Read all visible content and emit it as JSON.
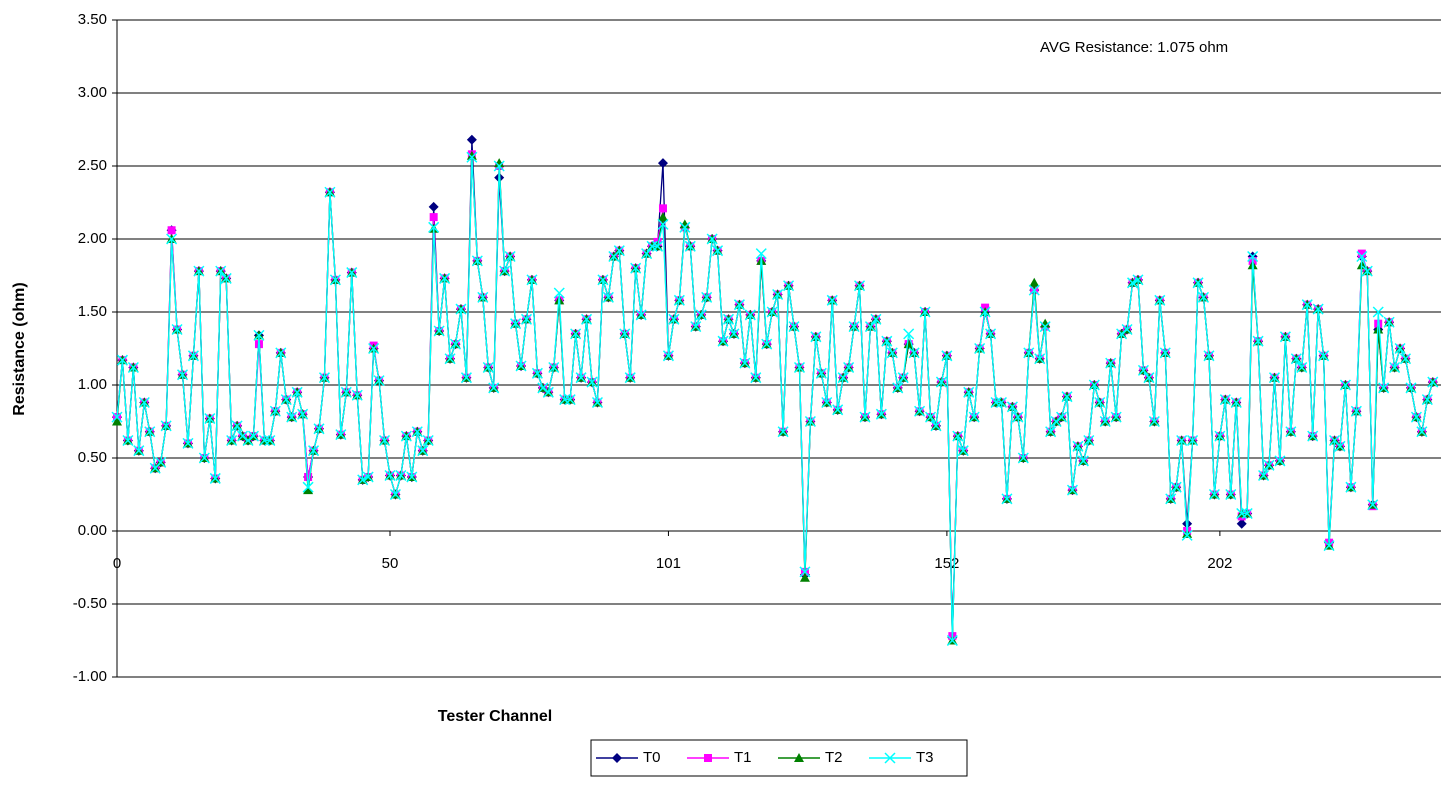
{
  "chart_data": {
    "type": "line",
    "annotation": "AVG Resistance: 1.075 ohm",
    "x_label": "Tester Channel",
    "y_label": "Resistance (ohm)",
    "xlim": [
      0,
      242.5
    ],
    "xticks": [
      0,
      50,
      101,
      152,
      202
    ],
    "ylim": [
      -1,
      3.5
    ],
    "yticks": [
      {
        "value": -1,
        "label": "-1.00"
      },
      {
        "value": -0.5,
        "label": "-0.50"
      },
      {
        "value": 0,
        "label": "0.00"
      },
      {
        "value": 0.5,
        "label": "0.50"
      },
      {
        "value": 1,
        "label": "1.00"
      },
      {
        "value": 1.5,
        "label": "1.50"
      },
      {
        "value": 2,
        "label": "2.00"
      },
      {
        "value": 2.5,
        "label": "2.50"
      },
      {
        "value": 3,
        "label": "3.00"
      },
      {
        "value": 3.5,
        "label": "3.50"
      }
    ],
    "grid": true,
    "legend": "bottom",
    "x": [
      0,
      1,
      2,
      3,
      4,
      5,
      6,
      7,
      8,
      9,
      10,
      11,
      12,
      13,
      14,
      15,
      16,
      17,
      18,
      19,
      20,
      21,
      22,
      23,
      24,
      25,
      26,
      27,
      28,
      29,
      30,
      31,
      32,
      33,
      34,
      35,
      36,
      37,
      38,
      39,
      40,
      41,
      42,
      43,
      44,
      45,
      46,
      47,
      48,
      49,
      50,
      51,
      52,
      53,
      54,
      55,
      56,
      57,
      58,
      59,
      60,
      61,
      62,
      63,
      64,
      65,
      66,
      67,
      68,
      69,
      70,
      71,
      72,
      73,
      74,
      75,
      76,
      77,
      78,
      79,
      80,
      81,
      82,
      83,
      84,
      85,
      86,
      87,
      88,
      89,
      90,
      91,
      92,
      93,
      94,
      95,
      96,
      97,
      98,
      99,
      100,
      101,
      102,
      103,
      104,
      105,
      106,
      107,
      108,
      109,
      110,
      111,
      112,
      113,
      114,
      115,
      116,
      117,
      118,
      119,
      120,
      121,
      122,
      123,
      124,
      125,
      126,
      127,
      128,
      129,
      130,
      131,
      132,
      133,
      134,
      135,
      136,
      137,
      138,
      139,
      140,
      141,
      142,
      143,
      144,
      145,
      146,
      147,
      148,
      149,
      150,
      151,
      152,
      153,
      154,
      155,
      156,
      157,
      158,
      159,
      160,
      161,
      162,
      163,
      164,
      165,
      166,
      167,
      168,
      169,
      170,
      171,
      172,
      173,
      174,
      175,
      176,
      177,
      178,
      179,
      180,
      181,
      182,
      183,
      184,
      185,
      186,
      187,
      188,
      189,
      190,
      191,
      192,
      193,
      194,
      195,
      196,
      197,
      198,
      199,
      200,
      201,
      202,
      203,
      204,
      205,
      206,
      207,
      208,
      209,
      210,
      211,
      212,
      213,
      214,
      215,
      216,
      217,
      218,
      219,
      220,
      221,
      222,
      223,
      224,
      225,
      226,
      227,
      228,
      229,
      230,
      231,
      232,
      233,
      234,
      235,
      236,
      237,
      238,
      239,
      240,
      241
    ],
    "series": [
      {
        "name": "T0",
        "color": "#000080",
        "marker": "diamond",
        "values": [
          0.78,
          1.17,
          0.62,
          1.12,
          0.55,
          0.88,
          0.68,
          0.43,
          0.47,
          0.72,
          2.06,
          1.38,
          1.07,
          0.6,
          1.2,
          1.78,
          0.5,
          0.77,
          0.36,
          1.78,
          1.73,
          0.62,
          0.72,
          0.65,
          0.62,
          0.65,
          1.34,
          0.62,
          0.62,
          0.82,
          1.22,
          0.9,
          0.78,
          0.95,
          0.8,
          0.37,
          0.55,
          0.7,
          1.05,
          2.32,
          1.72,
          0.66,
          0.95,
          1.77,
          0.93,
          0.35,
          0.37,
          1.25,
          1.03,
          0.62,
          0.38,
          0.25,
          0.38,
          0.65,
          0.37,
          0.68,
          0.55,
          0.62,
          2.22,
          1.37,
          1.73,
          1.18,
          1.28,
          1.52,
          1.05,
          2.68,
          1.85,
          1.6,
          1.12,
          0.98,
          2.42,
          1.78,
          1.88,
          1.42,
          1.13,
          1.45,
          1.72,
          1.08,
          0.98,
          0.95,
          1.12,
          1.58,
          0.9,
          0.9,
          1.35,
          1.05,
          1.45,
          1.02,
          0.88,
          1.72,
          1.6,
          1.88,
          1.92,
          1.35,
          1.05,
          1.8,
          1.48,
          1.9,
          1.95,
          1.95,
          2.52,
          1.2,
          1.45,
          1.58,
          2.08,
          1.95,
          1.4,
          1.48,
          1.6,
          2.0,
          1.92,
          1.3,
          1.45,
          1.35,
          1.55,
          1.15,
          1.48,
          1.05,
          1.85,
          1.28,
          1.5,
          1.62,
          0.68,
          1.68,
          1.4,
          1.12,
          -0.3,
          0.75,
          1.33,
          1.08,
          0.88,
          1.58,
          0.83,
          1.05,
          1.12,
          1.4,
          1.68,
          0.78,
          1.4,
          1.45,
          0.8,
          1.3,
          1.22,
          0.98,
          1.05,
          1.28,
          1.22,
          0.82,
          1.5,
          0.78,
          0.72,
          1.02,
          1.2,
          -0.73,
          0.65,
          0.55,
          0.95,
          0.78,
          1.25,
          1.5,
          1.35,
          0.88,
          0.88,
          0.22,
          0.85,
          0.78,
          0.5,
          1.22,
          1.65,
          1.18,
          1.4,
          0.68,
          0.75,
          0.78,
          0.92,
          0.28,
          0.58,
          0.48,
          0.62,
          1.0,
          0.88,
          0.75,
          1.15,
          0.78,
          1.35,
          1.38,
          1.7,
          1.72,
          1.1,
          1.05,
          0.75,
          1.58,
          1.22,
          0.22,
          0.3,
          0.62,
          0.05,
          0.62,
          1.7,
          1.6,
          1.2,
          0.25,
          0.65,
          0.9,
          0.25,
          0.88,
          0.05,
          0.12,
          1.88,
          1.3,
          0.38,
          0.45,
          1.05,
          0.48,
          1.33,
          0.68,
          1.18,
          1.12,
          1.55,
          0.65,
          1.52,
          1.2,
          -0.08,
          0.62,
          0.58,
          1.0,
          0.3,
          0.82,
          1.88,
          1.78,
          0.18,
          1.38,
          0.98,
          1.43,
          1.12,
          1.25,
          1.18,
          0.98,
          0.78,
          0.68,
          0.9,
          1.02
        ]
      },
      {
        "name": "T1",
        "color": "#ff00ff",
        "marker": "square",
        "values": [
          0.78,
          1.17,
          0.62,
          1.12,
          0.55,
          0.88,
          0.68,
          0.43,
          0.47,
          0.72,
          2.06,
          1.38,
          1.07,
          0.6,
          1.2,
          1.78,
          0.5,
          0.77,
          0.36,
          1.78,
          1.73,
          0.62,
          0.72,
          0.65,
          0.62,
          0.65,
          1.28,
          0.62,
          0.62,
          0.82,
          1.22,
          0.9,
          0.78,
          0.95,
          0.8,
          0.37,
          0.55,
          0.7,
          1.05,
          2.32,
          1.72,
          0.66,
          0.95,
          1.77,
          0.93,
          0.35,
          0.37,
          1.27,
          1.03,
          0.62,
          0.38,
          0.25,
          0.38,
          0.65,
          0.37,
          0.68,
          0.55,
          0.62,
          2.15,
          1.37,
          1.73,
          1.18,
          1.28,
          1.52,
          1.05,
          2.58,
          1.85,
          1.6,
          1.12,
          0.98,
          2.5,
          1.78,
          1.88,
          1.42,
          1.13,
          1.45,
          1.72,
          1.08,
          0.98,
          0.95,
          1.12,
          1.58,
          0.9,
          0.9,
          1.35,
          1.05,
          1.45,
          1.02,
          0.88,
          1.72,
          1.6,
          1.88,
          1.92,
          1.35,
          1.05,
          1.8,
          1.48,
          1.9,
          1.95,
          1.98,
          2.21,
          1.2,
          1.45,
          1.58,
          2.08,
          1.95,
          1.4,
          1.48,
          1.6,
          2.0,
          1.92,
          1.3,
          1.45,
          1.35,
          1.55,
          1.15,
          1.48,
          1.05,
          1.85,
          1.28,
          1.5,
          1.62,
          0.68,
          1.68,
          1.4,
          1.12,
          -0.28,
          0.75,
          1.33,
          1.08,
          0.88,
          1.58,
          0.83,
          1.05,
          1.12,
          1.4,
          1.68,
          0.78,
          1.4,
          1.45,
          0.8,
          1.3,
          1.22,
          0.98,
          1.05,
          1.28,
          1.22,
          0.82,
          1.5,
          0.78,
          0.72,
          1.02,
          1.2,
          -0.72,
          0.65,
          0.55,
          0.95,
          0.78,
          1.25,
          1.53,
          1.35,
          0.88,
          0.88,
          0.22,
          0.85,
          0.78,
          0.5,
          1.22,
          1.65,
          1.18,
          1.4,
          0.68,
          0.75,
          0.78,
          0.92,
          0.28,
          0.58,
          0.48,
          0.62,
          1.0,
          0.88,
          0.75,
          1.15,
          0.78,
          1.35,
          1.38,
          1.7,
          1.72,
          1.1,
          1.05,
          0.75,
          1.58,
          1.22,
          0.22,
          0.3,
          0.62,
          0.0,
          0.62,
          1.7,
          1.6,
          1.2,
          0.25,
          0.65,
          0.9,
          0.25,
          0.88,
          0.1,
          0.12,
          1.85,
          1.3,
          0.38,
          0.45,
          1.05,
          0.48,
          1.33,
          0.68,
          1.18,
          1.12,
          1.55,
          0.65,
          1.52,
          1.2,
          -0.08,
          0.62,
          0.58,
          1.0,
          0.3,
          0.82,
          1.9,
          1.78,
          0.17,
          1.42,
          0.98,
          1.43,
          1.12,
          1.25,
          1.18,
          0.98,
          0.78,
          0.68,
          0.9,
          1.02
        ]
      },
      {
        "name": "T2",
        "color": "#008000",
        "marker": "triangle",
        "values": [
          0.75,
          1.17,
          0.62,
          1.12,
          0.55,
          0.88,
          0.68,
          0.43,
          0.47,
          0.72,
          2.0,
          1.38,
          1.07,
          0.6,
          1.2,
          1.78,
          0.5,
          0.77,
          0.36,
          1.78,
          1.73,
          0.62,
          0.72,
          0.65,
          0.62,
          0.65,
          1.34,
          0.62,
          0.62,
          0.82,
          1.22,
          0.9,
          0.78,
          0.95,
          0.8,
          0.28,
          0.55,
          0.7,
          1.05,
          2.32,
          1.72,
          0.66,
          0.95,
          1.77,
          0.93,
          0.35,
          0.37,
          1.25,
          1.03,
          0.62,
          0.38,
          0.25,
          0.38,
          0.65,
          0.37,
          0.68,
          0.55,
          0.62,
          2.07,
          1.37,
          1.73,
          1.18,
          1.28,
          1.52,
          1.05,
          2.57,
          1.85,
          1.6,
          1.12,
          0.98,
          2.52,
          1.78,
          1.88,
          1.42,
          1.13,
          1.45,
          1.72,
          1.08,
          0.98,
          0.95,
          1.12,
          1.58,
          0.9,
          0.9,
          1.35,
          1.05,
          1.45,
          1.02,
          0.88,
          1.72,
          1.6,
          1.88,
          1.92,
          1.35,
          1.05,
          1.8,
          1.48,
          1.9,
          1.95,
          1.95,
          2.15,
          1.2,
          1.45,
          1.58,
          2.1,
          1.95,
          1.4,
          1.48,
          1.6,
          2.0,
          1.92,
          1.3,
          1.45,
          1.35,
          1.55,
          1.15,
          1.48,
          1.05,
          1.85,
          1.28,
          1.5,
          1.62,
          0.68,
          1.68,
          1.4,
          1.12,
          -0.32,
          0.75,
          1.33,
          1.08,
          0.88,
          1.58,
          0.83,
          1.05,
          1.12,
          1.4,
          1.68,
          0.78,
          1.4,
          1.45,
          0.8,
          1.3,
          1.22,
          0.98,
          1.05,
          1.28,
          1.22,
          0.82,
          1.5,
          0.78,
          0.72,
          1.02,
          1.2,
          -0.75,
          0.65,
          0.55,
          0.95,
          0.78,
          1.25,
          1.5,
          1.35,
          0.88,
          0.88,
          0.22,
          0.85,
          0.78,
          0.5,
          1.22,
          1.7,
          1.18,
          1.42,
          0.68,
          0.75,
          0.78,
          0.92,
          0.28,
          0.58,
          0.48,
          0.62,
          1.0,
          0.88,
          0.75,
          1.15,
          0.78,
          1.35,
          1.38,
          1.7,
          1.72,
          1.1,
          1.05,
          0.75,
          1.58,
          1.22,
          0.22,
          0.3,
          0.62,
          -0.02,
          0.62,
          1.7,
          1.6,
          1.2,
          0.25,
          0.65,
          0.9,
          0.25,
          0.88,
          0.12,
          0.12,
          1.82,
          1.3,
          0.38,
          0.45,
          1.05,
          0.48,
          1.33,
          0.68,
          1.18,
          1.12,
          1.55,
          0.65,
          1.52,
          1.2,
          -0.1,
          0.62,
          0.58,
          1.0,
          0.3,
          0.82,
          1.82,
          1.78,
          0.18,
          1.38,
          0.98,
          1.43,
          1.12,
          1.25,
          1.18,
          0.98,
          0.78,
          0.68,
          0.9,
          1.02
        ]
      },
      {
        "name": "T3",
        "color": "#00ffff",
        "marker": "x",
        "values": [
          0.78,
          1.17,
          0.62,
          1.12,
          0.55,
          0.88,
          0.68,
          0.43,
          0.47,
          0.72,
          2.0,
          1.38,
          1.07,
          0.6,
          1.2,
          1.78,
          0.5,
          0.77,
          0.36,
          1.78,
          1.73,
          0.62,
          0.72,
          0.65,
          0.62,
          0.65,
          1.34,
          0.62,
          0.62,
          0.82,
          1.22,
          0.9,
          0.78,
          0.95,
          0.8,
          0.3,
          0.55,
          0.7,
          1.05,
          2.32,
          1.72,
          0.66,
          0.95,
          1.77,
          0.93,
          0.35,
          0.37,
          1.25,
          1.03,
          0.62,
          0.38,
          0.25,
          0.38,
          0.65,
          0.37,
          0.68,
          0.55,
          0.62,
          2.08,
          1.37,
          1.73,
          1.18,
          1.28,
          1.52,
          1.05,
          2.56,
          1.85,
          1.6,
          1.12,
          0.98,
          2.5,
          1.78,
          1.88,
          1.42,
          1.13,
          1.45,
          1.72,
          1.08,
          0.98,
          0.95,
          1.12,
          1.63,
          0.9,
          0.9,
          1.35,
          1.05,
          1.45,
          1.02,
          0.88,
          1.72,
          1.6,
          1.88,
          1.92,
          1.35,
          1.05,
          1.8,
          1.48,
          1.9,
          1.95,
          1.95,
          2.1,
          1.2,
          1.45,
          1.58,
          2.08,
          1.95,
          1.4,
          1.48,
          1.6,
          2.0,
          1.92,
          1.3,
          1.45,
          1.35,
          1.55,
          1.15,
          1.48,
          1.05,
          1.9,
          1.28,
          1.5,
          1.62,
          0.68,
          1.68,
          1.4,
          1.12,
          -0.28,
          0.75,
          1.33,
          1.08,
          0.88,
          1.58,
          0.83,
          1.05,
          1.12,
          1.4,
          1.68,
          0.78,
          1.4,
          1.45,
          0.8,
          1.3,
          1.22,
          0.98,
          1.05,
          1.35,
          1.22,
          0.82,
          1.5,
          0.78,
          0.72,
          1.02,
          1.2,
          -0.75,
          0.65,
          0.55,
          0.95,
          0.78,
          1.25,
          1.5,
          1.35,
          0.88,
          0.88,
          0.22,
          0.85,
          0.78,
          0.5,
          1.22,
          1.65,
          1.18,
          1.4,
          0.68,
          0.75,
          0.78,
          0.92,
          0.28,
          0.58,
          0.48,
          0.62,
          1.0,
          0.88,
          0.75,
          1.15,
          0.78,
          1.35,
          1.38,
          1.7,
          1.72,
          1.1,
          1.05,
          0.75,
          1.58,
          1.22,
          0.22,
          0.3,
          0.62,
          -0.03,
          0.62,
          1.7,
          1.6,
          1.2,
          0.25,
          0.65,
          0.9,
          0.25,
          0.88,
          0.12,
          0.12,
          1.88,
          1.3,
          0.38,
          0.45,
          1.05,
          0.48,
          1.33,
          0.68,
          1.18,
          1.12,
          1.55,
          0.65,
          1.52,
          1.2,
          -0.1,
          0.62,
          0.58,
          1.0,
          0.3,
          0.82,
          1.88,
          1.78,
          0.18,
          1.5,
          0.98,
          1.43,
          1.12,
          1.25,
          1.18,
          0.98,
          0.78,
          0.68,
          0.9,
          1.02
        ]
      }
    ]
  }
}
